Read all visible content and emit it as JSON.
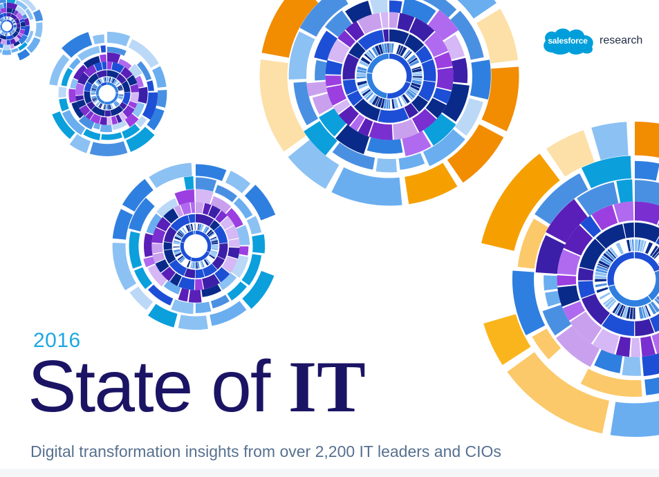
{
  "brand": {
    "logo_text": "salesforce",
    "suffix": "research",
    "cloud_color": "#009edb"
  },
  "cover": {
    "year": "2016",
    "title_light": "State of",
    "title_bold": "IT",
    "subtitle": "Digital transformation insights from over 2,200 IT leaders and CIOs"
  },
  "palette": {
    "navy": "#1b1464",
    "sky": "#1ea7e4",
    "slate": "#57708f",
    "blues": [
      "#0a2a8a",
      "#1d4fd6",
      "#2f7fe0",
      "#4a90e2",
      "#6aaef0",
      "#8cc1f3",
      "#bcd8f7",
      "#0b9fdc"
    ],
    "purples": [
      "#3c1fa8",
      "#5a1fb8",
      "#7a2fd0",
      "#9b3fe0",
      "#b06af0",
      "#c9a0ee",
      "#d5b8f5"
    ],
    "oranges": [
      "#f5a000",
      "#fbb51c",
      "#fbc96a",
      "#fde0a8",
      "#f28c00"
    ]
  },
  "graphics": {
    "decorative_rings": "concentric segmented ring wheels"
  }
}
